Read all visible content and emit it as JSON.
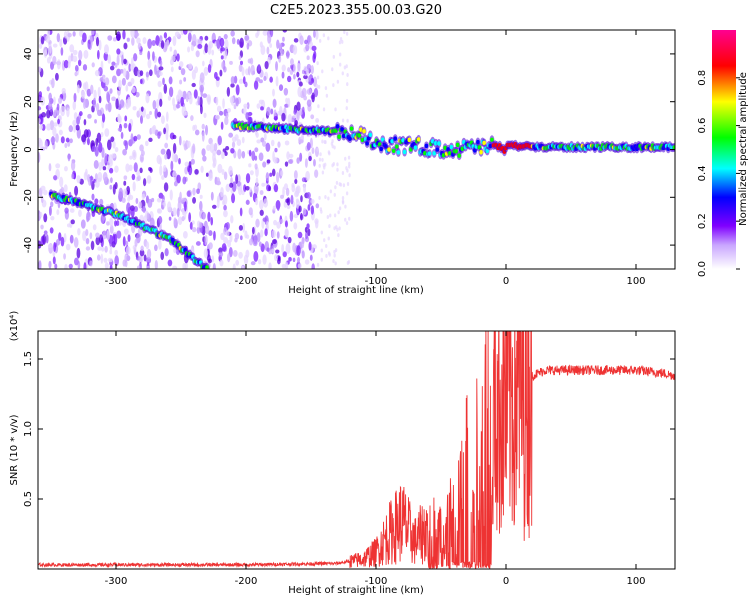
{
  "title": "C2E5.2023.355.00.03.G20",
  "chart_data": [
    {
      "type": "heatmap",
      "xlabel": "Height of straight line (km)",
      "ylabel": "Frequency (Hz)",
      "xlim": [
        -360,
        130
      ],
      "ylim": [
        -50,
        50
      ],
      "x_ticks": [
        -300,
        -200,
        -100,
        0,
        100
      ],
      "y_ticks": [
        -40,
        -20,
        0,
        20,
        40
      ],
      "colorbar": {
        "label": "Normalized spectral amplitude",
        "range": [
          0.0,
          1.0
        ],
        "ticks": [
          "0.0",
          "0.2",
          "0.4",
          "0.6",
          "0.8"
        ],
        "colors": [
          "#ffffff",
          "#8000ff",
          "#0000ff",
          "#00ffff",
          "#00ff00",
          "#ffff00",
          "#ff0000",
          "#ff00a0"
        ]
      },
      "traces": [
        {
          "x": [
            -350,
            -300,
            -260,
            -230
          ],
          "y": [
            -19,
            -27,
            -37,
            -50
          ],
          "amplitude": 0.45
        },
        {
          "x": [
            -210,
            -150,
            -120,
            -90,
            -60,
            -40,
            -20,
            0,
            20,
            60,
            100,
            130
          ],
          "y": [
            10,
            8,
            7,
            2,
            1,
            0,
            1,
            2,
            1,
            1,
            1,
            1
          ],
          "amplitude": 0.5
        }
      ]
    },
    {
      "type": "line",
      "xlabel": "Height of straight line (km)",
      "ylabel": "SNR (10 * v/v)",
      "multiplier": "(x10⁴)",
      "xlim": [
        -360,
        130
      ],
      "ylim": [
        0,
        1.7
      ],
      "x_ticks": [
        -300,
        -200,
        -100,
        0,
        100
      ],
      "y_ticks": [
        "0.5",
        "1.0",
        "1.5"
      ],
      "color": "#ee3333",
      "x": [
        -360,
        -300,
        -200,
        -130,
        -110,
        -100,
        -90,
        -80,
        -70,
        -60,
        -50,
        -40,
        -30,
        -20,
        -15,
        -10,
        -5,
        0,
        5,
        10,
        15,
        20,
        30,
        40,
        60,
        80,
        100,
        120,
        130
      ],
      "y": [
        0.03,
        0.03,
        0.03,
        0.04,
        0.07,
        0.12,
        0.25,
        0.35,
        0.2,
        0.3,
        0.28,
        0.45,
        0.7,
        0.9,
        1.2,
        1.1,
        1.15,
        1.2,
        1.25,
        1.3,
        1.33,
        1.38,
        1.42,
        1.42,
        1.42,
        1.42,
        1.42,
        1.4,
        1.38
      ]
    }
  ]
}
